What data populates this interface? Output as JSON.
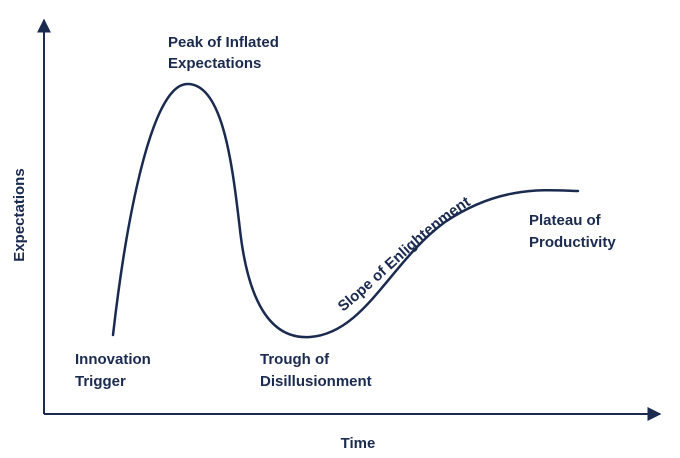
{
  "diagram": {
    "x_axis_label": "Time",
    "y_axis_label": "Expectations",
    "phases": {
      "innovation_trigger": [
        "Innovation",
        "Trigger"
      ],
      "peak": [
        "Peak of Inflated",
        "Expectations"
      ],
      "trough": [
        "Trough of",
        "Disillusionment"
      ],
      "slope": "Slope of Enlightenment",
      "plateau": [
        "Plateau of",
        "Productivity"
      ]
    },
    "colors": {
      "ink": "#1b2a4f",
      "background": "#ffffff"
    }
  }
}
